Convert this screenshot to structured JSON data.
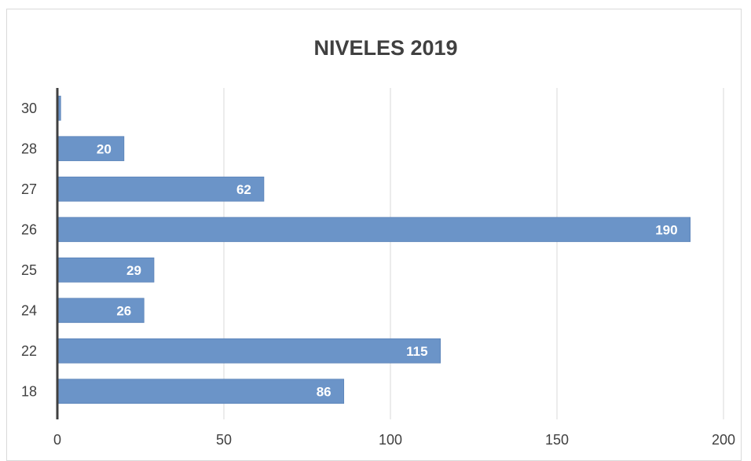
{
  "chart_data": {
    "type": "bar",
    "orientation": "horizontal",
    "title": "NIVELES 2019",
    "xlabel": "",
    "ylabel": "",
    "categories": [
      "18",
      "22",
      "24",
      "25",
      "26",
      "27",
      "28",
      "30"
    ],
    "values": [
      86,
      115,
      26,
      29,
      190,
      62,
      20,
      1
    ],
    "data_labels": [
      "86",
      "115",
      "26",
      "29",
      "190",
      "62",
      "20",
      ""
    ],
    "xlim": [
      0,
      200
    ],
    "x_ticks": [
      0,
      50,
      100,
      150,
      200
    ],
    "x_tick_labels": [
      "0",
      "50",
      "100",
      "150",
      "200"
    ],
    "grid": "vertical-major",
    "legend": "none",
    "bar_color": "#6b94c8",
    "data_label_color": "#ffffff"
  }
}
